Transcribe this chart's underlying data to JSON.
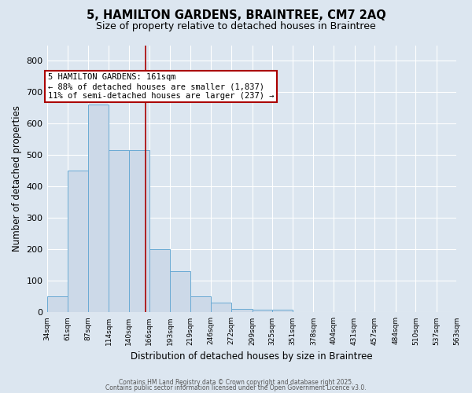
{
  "title_line1": "5, HAMILTON GARDENS, BRAINTREE, CM7 2AQ",
  "title_line2": "Size of property relative to detached houses in Braintree",
  "xlabel": "Distribution of detached houses by size in Braintree",
  "ylabel": "Number of detached properties",
  "bar_edges": [
    34,
    61,
    87,
    114,
    140,
    166,
    193,
    219,
    246,
    272,
    299,
    325,
    351,
    378,
    404,
    431,
    457,
    484,
    510,
    537,
    563
  ],
  "bar_heights": [
    50,
    450,
    660,
    515,
    515,
    200,
    130,
    50,
    30,
    10,
    8,
    8,
    0,
    0,
    0,
    0,
    0,
    0,
    0,
    0
  ],
  "bar_color": "#ccd9e8",
  "bar_edge_color": "#6aaad4",
  "vline_x": 161,
  "vline_color": "#aa0000",
  "annotation_box_text": "5 HAMILTON GARDENS: 161sqm\n← 88% of detached houses are smaller (1,837)\n11% of semi-detached houses are larger (237) →",
  "annotation_box_color": "#aa0000",
  "annotation_text_fontsize": 7.5,
  "ylim": [
    0,
    850
  ],
  "yticks": [
    0,
    100,
    200,
    300,
    400,
    500,
    600,
    700,
    800
  ],
  "background_color": "#dce6f0",
  "plot_bg_color": "#dce6f0",
  "footer_line1": "Contains HM Land Registry data © Crown copyright and database right 2025.",
  "footer_line2": "Contains public sector information licensed under the Open Government Licence v3.0.",
  "title_fontsize": 10.5,
  "subtitle_fontsize": 9,
  "ylabel_fontsize": 8.5,
  "xlabel_fontsize": 8.5,
  "tick_labels": [
    "34sqm",
    "61sqm",
    "87sqm",
    "114sqm",
    "140sqm",
    "166sqm",
    "193sqm",
    "219sqm",
    "246sqm",
    "272sqm",
    "299sqm",
    "325sqm",
    "351sqm",
    "378sqm",
    "404sqm",
    "431sqm",
    "457sqm",
    "484sqm",
    "510sqm",
    "537sqm",
    "563sqm"
  ]
}
